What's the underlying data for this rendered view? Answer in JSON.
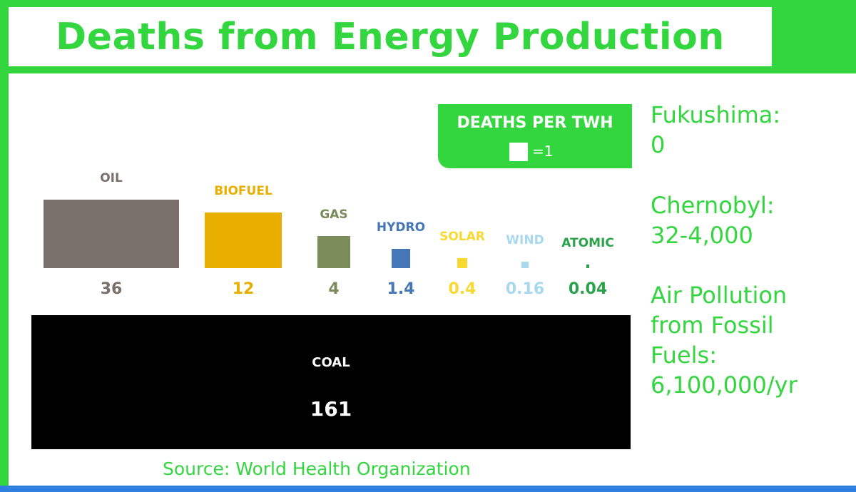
{
  "title": "Deaths from Energy Production",
  "legend": {
    "title": "DEATHS PER TWH",
    "unit_label": "=1"
  },
  "notes": [
    {
      "text": "Fukushima:\n0"
    },
    {
      "text": "Chernobyl:\n32-4,000"
    },
    {
      "text": "Air Pollution\nfrom Fossil\nFuels:\n6,100,000/yr"
    }
  ],
  "source": "Source: World Health Organization",
  "colors": {
    "brand_green": "#34d63f",
    "bottom_bar": "#2f7fe0",
    "oil": "#7a706b",
    "biofuel": "#e8ae00",
    "gas": "#7a8c5a",
    "hydro": "#4577b8",
    "solar": "#f8d932",
    "wind": "#a8d8ee",
    "atomic": "#2aa24a",
    "coal": "#000000"
  },
  "chart_data": {
    "type": "bar",
    "title": "Deaths from Energy Production",
    "encoding": "square area proportional to deaths per TWh",
    "categories": [
      "OIL",
      "BIOFUEL",
      "GAS",
      "HYDRO",
      "SOLAR",
      "WIND",
      "ATOMIC",
      "COAL"
    ],
    "values": [
      36,
      12,
      4,
      1.4,
      0.4,
      0.16,
      0.04,
      161
    ],
    "value_labels": [
      "36",
      "12",
      "4",
      "1.4",
      "0.4",
      "0.16",
      "0.04",
      "161"
    ],
    "legend": "DEATHS PER TWH",
    "xlabel": "",
    "ylabel": ""
  }
}
